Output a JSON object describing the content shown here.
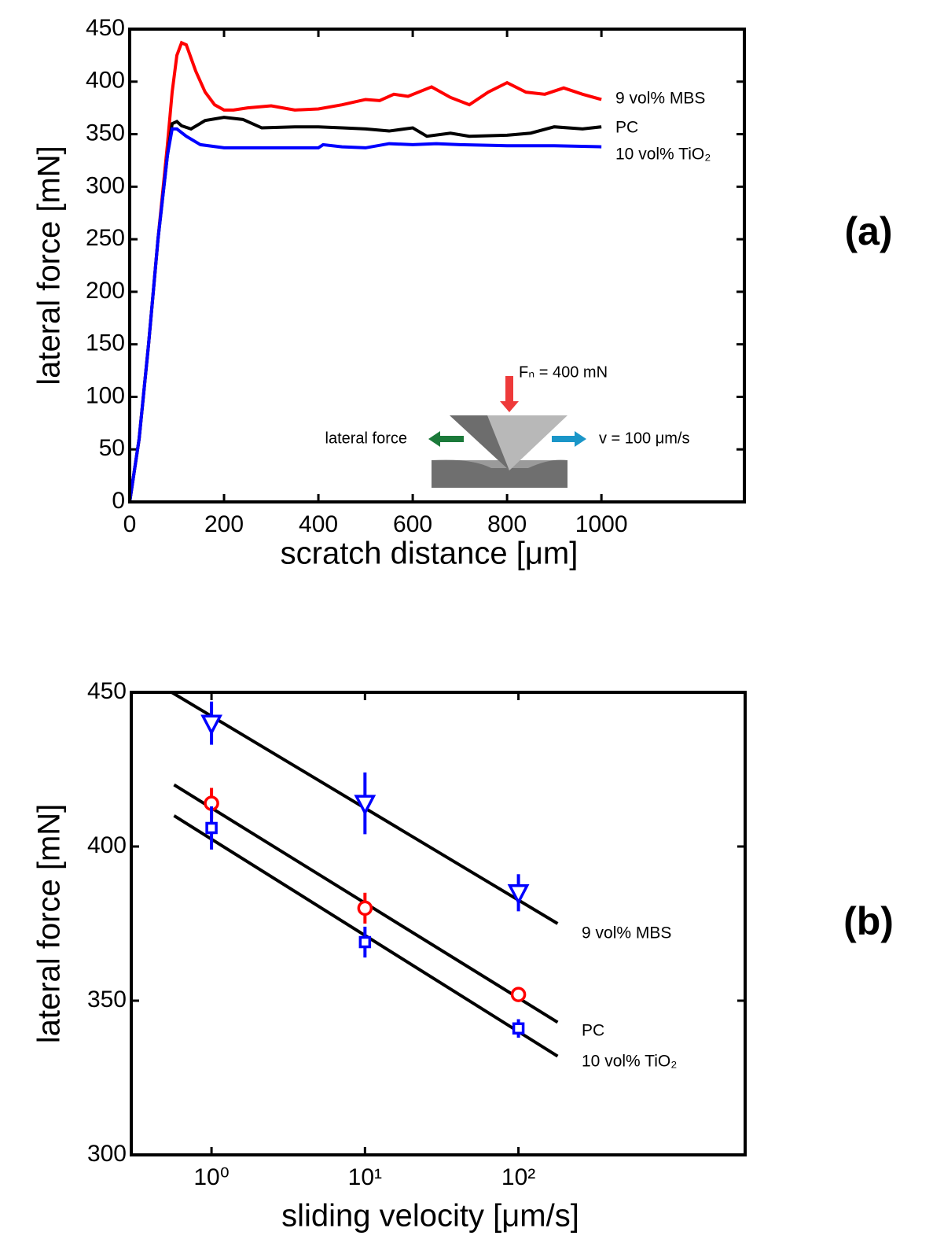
{
  "chart_data": [
    {
      "type": "line",
      "panel_label": "(a)",
      "x_label": "scratch distance [μm]",
      "y_label": "lateral force [mN]",
      "xlim": [
        0,
        1303
      ],
      "ylim": [
        0,
        450
      ],
      "xticks": [
        0,
        200,
        400,
        600,
        800,
        1000
      ],
      "yticks": [
        0,
        50,
        100,
        150,
        200,
        250,
        300,
        350,
        400,
        450
      ],
      "annotations": [
        "Fₙ = 400 mN",
        "lateral force",
        "v = 100 μm/s"
      ],
      "series": [
        {
          "name": "9 vol% MBS",
          "color": "#ff0000",
          "x": [
            0,
            20,
            40,
            60,
            80,
            90,
            100,
            110,
            120,
            140,
            160,
            180,
            200,
            220,
            250,
            300,
            350,
            400,
            450,
            500,
            530,
            560,
            590,
            640,
            680,
            720,
            760,
            800,
            840,
            880,
            920,
            960,
            1000
          ],
          "values": [
            0,
            60,
            150,
            250,
            340,
            390,
            425,
            437,
            435,
            410,
            390,
            378,
            373,
            373,
            375,
            377,
            373,
            374,
            378,
            383,
            382,
            388,
            386,
            395,
            385,
            378,
            390,
            399,
            390,
            388,
            394,
            388,
            383
          ]
        },
        {
          "name": "PC",
          "color": "#000000",
          "x": [
            0,
            20,
            40,
            60,
            80,
            90,
            100,
            110,
            130,
            160,
            200,
            240,
            280,
            350,
            400,
            450,
            500,
            550,
            600,
            630,
            680,
            720,
            800,
            850,
            900,
            960,
            1000
          ],
          "values": [
            0,
            60,
            150,
            250,
            330,
            360,
            362,
            358,
            355,
            363,
            366,
            364,
            356,
            357,
            357,
            356,
            355,
            353,
            356,
            348,
            351,
            348,
            349,
            351,
            357,
            355,
            357
          ]
        },
        {
          "name": "10 vol% TiO₂",
          "color": "#0000ff",
          "x": [
            0,
            20,
            40,
            60,
            80,
            90,
            100,
            120,
            150,
            200,
            300,
            400,
            410,
            450,
            500,
            550,
            600,
            650,
            700,
            800,
            900,
            1000
          ],
          "values": [
            0,
            60,
            150,
            250,
            330,
            355,
            355,
            348,
            340,
            337,
            337,
            337,
            340,
            338,
            337,
            341,
            340,
            341,
            340,
            339,
            339,
            338
          ]
        }
      ]
    },
    {
      "type": "errorbar",
      "panel_label": "(b)",
      "x_label": "sliding velocity [μm/s]",
      "y_label": "lateral force [mN]",
      "xscale": "log",
      "xlim": [
        0.3,
        3000
      ],
      "ylim": [
        300,
        450
      ],
      "xticks": [
        {
          "value": 1,
          "label": "10⁰"
        },
        {
          "value": 10,
          "label": "10¹"
        },
        {
          "value": 100,
          "label": "10²"
        }
      ],
      "yticks": [
        300,
        350,
        400,
        450
      ],
      "series": [
        {
          "name": "9 vol% MBS",
          "color": "#0000ff",
          "marker": "triangle-down",
          "x": [
            1,
            10,
            100
          ],
          "values": [
            440,
            414,
            385
          ],
          "errors": [
            7,
            10,
            6
          ],
          "fit": {
            "x": [
              0.55,
              180
            ],
            "values": [
              450,
              375
            ]
          }
        },
        {
          "name": "PC",
          "color": "#ff0000",
          "marker": "circle",
          "x": [
            1,
            10,
            100
          ],
          "values": [
            414,
            380,
            352
          ],
          "errors": [
            5,
            5,
            2
          ],
          "fit": {
            "x": [
              0.57,
              180
            ],
            "values": [
              420,
              343
            ]
          }
        },
        {
          "name": "10 vol% TiO₂",
          "color": "#0000ff",
          "marker": "square",
          "x": [
            1,
            10,
            100
          ],
          "values": [
            406,
            369,
            341
          ],
          "errors": [
            7,
            5,
            3
          ],
          "fit": {
            "x": [
              0.57,
              180
            ],
            "values": [
              410,
              332
            ]
          }
        }
      ]
    }
  ]
}
